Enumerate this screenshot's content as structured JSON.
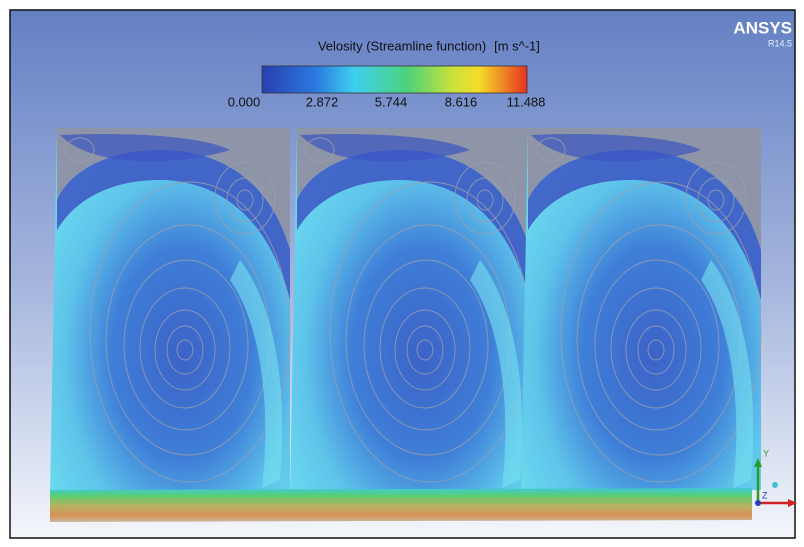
{
  "legend": {
    "title": "Velosity (Streamline function)",
    "unit": "[m s^-1]",
    "ticks": [
      "0.000",
      "2.872",
      "5.744",
      "8.616",
      "11.488"
    ]
  },
  "logo": {
    "name": "ANSYS",
    "version": "R14.5"
  },
  "triad": {
    "y": "Y",
    "z": "Z"
  }
}
